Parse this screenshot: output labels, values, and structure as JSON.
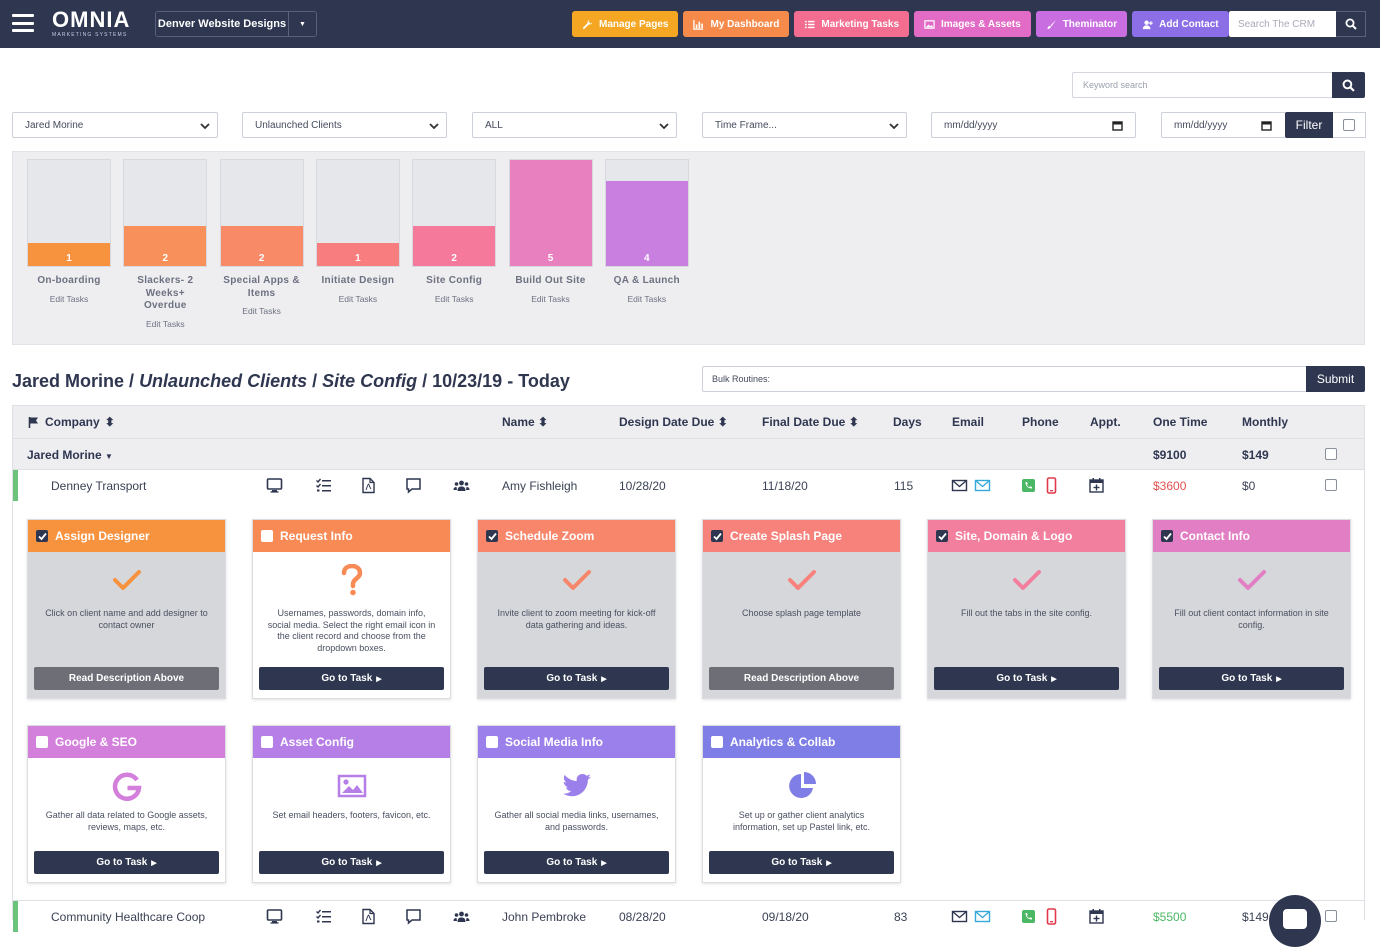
{
  "brand": {
    "logo": "OMNIA",
    "tagline": "MARKETING SYSTEMS"
  },
  "account": {
    "name": "Denver Website Designs"
  },
  "nav_buttons": [
    {
      "label": "Manage Pages",
      "icon": "wrench-icon",
      "color": "#f5a623"
    },
    {
      "label": "My Dashboard",
      "icon": "chart-icon",
      "color": "#f58a4b"
    },
    {
      "label": "Marketing Tasks",
      "icon": "list-icon",
      "color": "#f26d8f"
    },
    {
      "label": "Images & Assets",
      "icon": "image-icon",
      "color": "#e26bc6"
    },
    {
      "label": "Theminator",
      "icon": "brush-icon",
      "color": "#c86ee0"
    },
    {
      "label": "Add Contact",
      "icon": "add-user-icon",
      "color": "#8c6ee6"
    }
  ],
  "crm_search": {
    "placeholder": "Search The CRM"
  },
  "keyword_search": {
    "placeholder": "Keyword search"
  },
  "filters": {
    "user": "Jared Morine",
    "client_type": "Unlaunched Clients",
    "scope": "ALL",
    "time_frame": "Time Frame...",
    "date_from": "mm/dd/yyyy",
    "date_to": "mm/dd/yyyy",
    "filter_label": "Filter"
  },
  "pipeline": [
    {
      "name": "On-boarding",
      "count": "1",
      "fill": 0.22,
      "color": "#f7923f"
    },
    {
      "name": "Slackers- 2 Weeks+ Overdue",
      "count": "2",
      "fill": 0.38,
      "color": "#f7905a"
    },
    {
      "name": "Special Apps & Items",
      "count": "2",
      "fill": 0.38,
      "color": "#f88a68"
    },
    {
      "name": "Initiate Design",
      "count": "1",
      "fill": 0.22,
      "color": "#f87d7f"
    },
    {
      "name": "Site Config",
      "count": "2",
      "fill": 0.38,
      "color": "#f5799b"
    },
    {
      "name": "Build Out Site",
      "count": "5",
      "fill": 1.0,
      "color": "#e87fbf"
    },
    {
      "name": "QA & Launch",
      "count": "4",
      "fill": 0.8,
      "color": "#c97fe0"
    }
  ],
  "edit_tasks_label": "Edit Tasks",
  "heading": {
    "user": "Jared Morine",
    "client_type": "Unlaunched Clients",
    "stage": "Site Config",
    "range": "10/23/19 - Today",
    "sep": " / "
  },
  "bulk": {
    "placeholder": "Bulk Routines:",
    "submit_label": "Submit"
  },
  "table": {
    "columns": {
      "company": "Company",
      "name": "Name",
      "design_due": "Design Date Due",
      "final_due": "Final Date Due",
      "days": "Days",
      "email": "Email",
      "phone": "Phone",
      "appt": "Appt.",
      "one_time": "One Time",
      "monthly": "Monthly"
    },
    "group": {
      "name": "Jared Morine",
      "one_time": "$9100",
      "monthly": "$149"
    },
    "rows": [
      {
        "company": "Denney Transport",
        "name": "Amy Fishleigh",
        "design_due": "10/28/20",
        "final_due": "11/18/20",
        "days": "115",
        "one_time": "$3600",
        "monthly": "$0",
        "one_time_color": "#e0504f"
      },
      {
        "company": "Community Healthcare Coop",
        "name": "John Pembroke",
        "design_due": "08/28/20",
        "final_due": "09/18/20",
        "days": "83",
        "one_time": "$5500",
        "monthly": "$149",
        "one_time_color": "#4cb865"
      }
    ]
  },
  "tasks": [
    {
      "title": "Assign Designer",
      "checked": true,
      "color": "#f7923f",
      "desc": "Click on client name and add designer to contact owner",
      "button": "Read Description Above",
      "icon": "check-icon"
    },
    {
      "title": "Request Info",
      "checked": false,
      "color": "#f88a56",
      "desc": "Usernames, passwords, domain info, social media. Select the right email icon in the client record and choose from the dropdown boxes.",
      "button": "Go to Task",
      "icon": "question-icon"
    },
    {
      "title": "Schedule Zoom",
      "checked": true,
      "color": "#f7866b",
      "desc": "Invite client to zoom meeting for kick-off data gathering and ideas.",
      "button": "Go to Task",
      "icon": "check-icon"
    },
    {
      "title": "Create Splash Page",
      "checked": true,
      "color": "#f7827c",
      "desc": "Choose splash page template",
      "button": "Read Description Above",
      "icon": "check-icon"
    },
    {
      "title": "Site, Domain & Logo",
      "checked": true,
      "color": "#f27f9e",
      "desc": "Fill out the tabs in the site config.",
      "button": "Go to Task",
      "icon": "check-icon"
    },
    {
      "title": "Contact Info",
      "checked": true,
      "color": "#e27fc4",
      "desc": "Fill out client contact information in site config.",
      "button": "Go to Task",
      "icon": "check-icon"
    },
    {
      "title": "Google & SEO",
      "checked": false,
      "color": "#d37fdc",
      "desc": "Gather all data related to Google assets, reviews, maps, etc.",
      "button": "Go to Task",
      "icon": "google-icon"
    },
    {
      "title": "Asset Config",
      "checked": false,
      "color": "#b67fe7",
      "desc": "Set email headers, footers, favicon, etc.",
      "button": "Go to Task",
      "icon": "image-icon"
    },
    {
      "title": "Social Media Info",
      "checked": false,
      "color": "#9b7feb",
      "desc": "Gather all social media links, usernames, and passwords.",
      "button": "Go to Task",
      "icon": "twitter-icon"
    },
    {
      "title": "Analytics & Collab",
      "checked": false,
      "color": "#7e7ee6",
      "desc": "Set up or gather client analytics information, set up Pastel link, etc.",
      "button": "Go to Task",
      "icon": "pie-chart-icon"
    }
  ]
}
